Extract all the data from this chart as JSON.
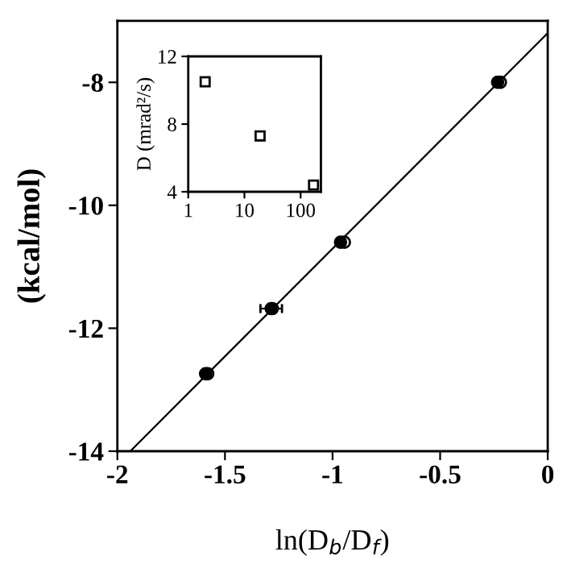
{
  "chart_data": [
    {
      "type": "scatter",
      "xlabel": "ln(D$_{b}$/D$_{f}$)",
      "ylabel": "(kcal/mol)",
      "xlim": [
        -2,
        0
      ],
      "ylim": [
        -14,
        -7
      ],
      "xticks": [
        -2,
        -1.5,
        -1,
        -0.5,
        0
      ],
      "yticks": [
        {
          "value": -14,
          "label": "-14"
        },
        {
          "value": -12,
          "label": "-12"
        },
        {
          "value": -10,
          "label": "-10"
        },
        {
          "value": -8,
          "label": "-8"
        }
      ],
      "marker": "circle",
      "grid": false,
      "legend": false,
      "series": [
        {
          "color": "#000000",
          "x": [
            -1.59,
            -1.285,
            -0.963,
            -0.233
          ],
          "values": [
            -12.74,
            -11.68,
            -10.6,
            -8.0
          ],
          "xerrors": [
            null,
            0.05,
            null,
            null
          ]
        },
        {
          "color": "#000000",
          "x": [
            -1.58,
            -1.28,
            -0.945,
            -0.22
          ],
          "values": [
            -12.74,
            -11.68,
            -10.6,
            -8.0
          ]
        },
        {
          "type": "line",
          "marker": "none",
          "color": "#000000",
          "x": [
            -1.94,
            0
          ],
          "values": [
            -14,
            -7.2
          ]
        }
      ]
    },
    {
      "type": "scatter",
      "ylabel": "D (mrad²/s)",
      "log": "x",
      "xlim": [
        1,
        230
      ],
      "ylim": [
        4,
        12
      ],
      "xticks": [
        1,
        10,
        100
      ],
      "yticks": [
        4,
        8,
        12
      ],
      "marker": "square",
      "grid": false,
      "legend": false,
      "series": [
        {
          "color": "#000000",
          "x": [
            2,
            19,
            170
          ],
          "values": [
            10.5,
            7.3,
            4.4
          ]
        }
      ]
    }
  ]
}
